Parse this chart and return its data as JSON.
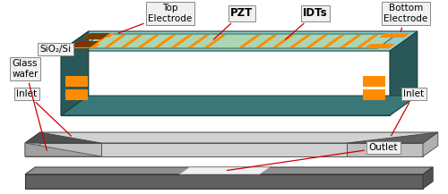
{
  "fig_width": 5.0,
  "fig_height": 2.17,
  "dpi": 100,
  "bg_color": "#ffffff",
  "labels": {
    "sio2_si": "SiO₂/Si",
    "top_electrode": "Top\nElectrode",
    "pzt": "PZT",
    "idts": "IDTs",
    "bottom_electrode": "Bottom\nElectrode",
    "inlet_left": "Inlet",
    "inlet_right": "Inlet",
    "glass_wafer": "Glass\nwafer",
    "outlet": "Outlet"
  },
  "colors": {
    "chip_top_teal": "#8ECECE",
    "chip_side_dark": "#3A7878",
    "chip_front_dark": "#2E6060",
    "pzt_green": "#B0D8B0",
    "orange": "#FF8C00",
    "dark_brown": "#7B3B00",
    "glass_light": "#D2D2D2",
    "glass_mid": "#B0B0B0",
    "glass_dark": "#888888",
    "glass_shadow": "#606060",
    "bottom_gray": "#909090",
    "bottom_dark": "#606060",
    "white_rect": "#F0F0F0",
    "black": "#000000",
    "red": "#CC0000",
    "label_bg": "#F0F0F0",
    "label_edge": "#888888"
  }
}
